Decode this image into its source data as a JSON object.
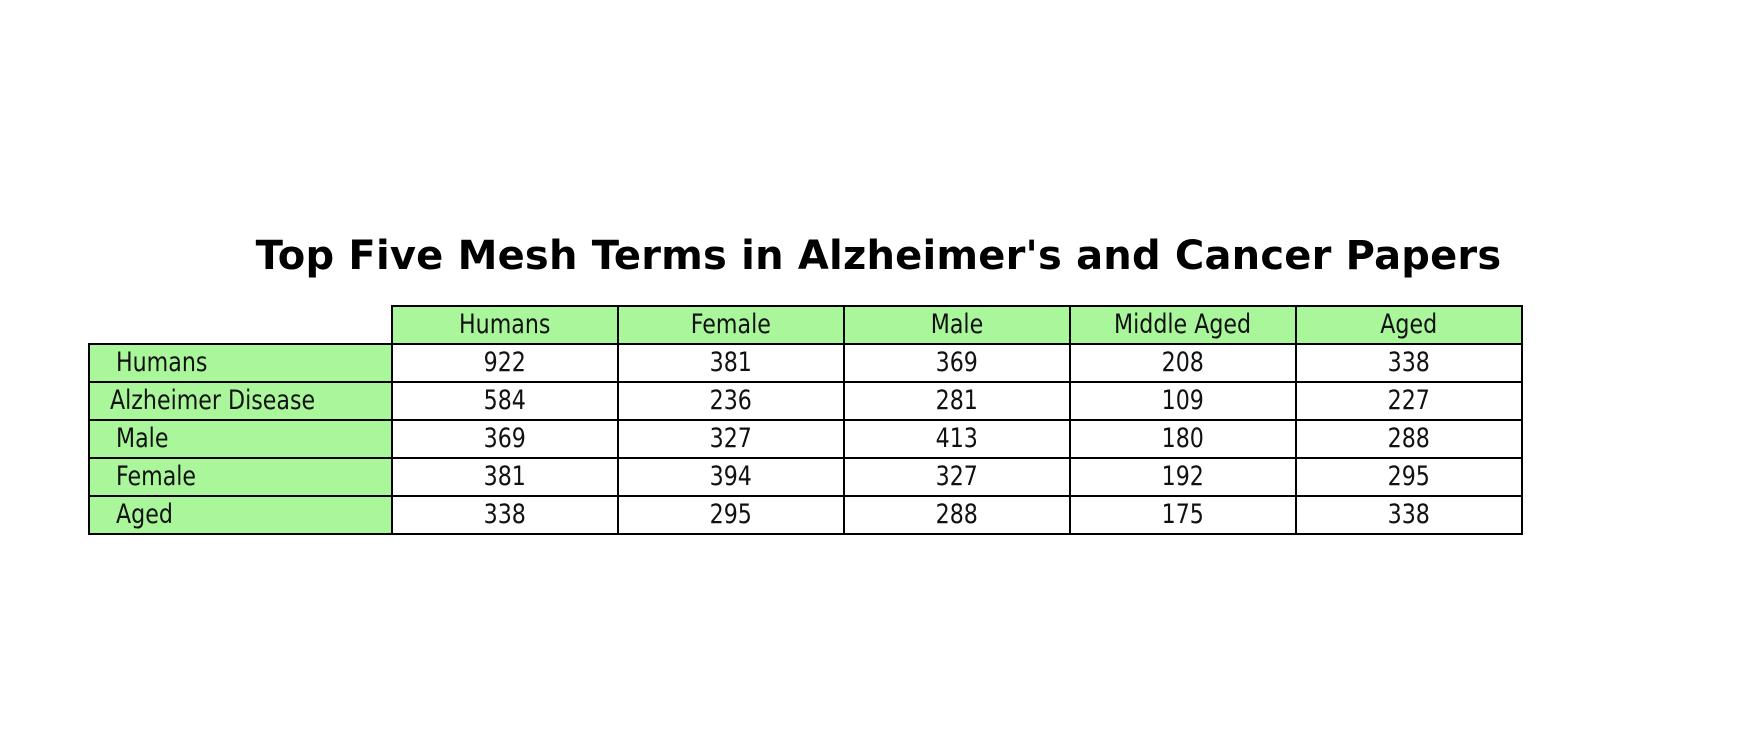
{
  "chart_data": {
    "type": "table",
    "title": "Top Five Mesh Terms in Alzheimer's and Cancer Papers",
    "columns": [
      "Humans",
      "Female",
      "Male",
      "Middle Aged",
      "Aged"
    ],
    "rows": [
      {
        "label": "Humans",
        "values": [
          "922",
          "381",
          "369",
          "208",
          "338"
        ]
      },
      {
        "label": "Alzheimer Disease",
        "values": [
          "584",
          "236",
          "281",
          "109",
          "227"
        ]
      },
      {
        "label": "Male",
        "values": [
          "369",
          "327",
          "413",
          "180",
          "288"
        ]
      },
      {
        "label": "Female",
        "values": [
          "381",
          "394",
          "327",
          "192",
          "295"
        ]
      },
      {
        "label": "Aged",
        "values": [
          "338",
          "295",
          "288",
          "175",
          "338"
        ]
      }
    ],
    "header_color": "#a9f79a",
    "cell_color": "#ffffff",
    "border_color": "#000000"
  }
}
